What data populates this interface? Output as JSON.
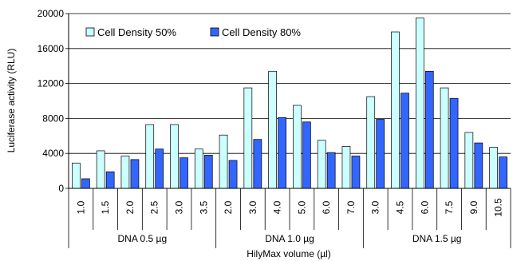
{
  "chart_data": {
    "type": "bar",
    "title": "",
    "ylabel": "Luciferase activity (RLU)",
    "xlabel": "HilyMax volume (µl)",
    "ylim": [
      0,
      20000
    ],
    "yticks": [
      0,
      4000,
      8000,
      12000,
      16000,
      20000
    ],
    "grid": "horizontal",
    "legend_position": "top-left",
    "groups": [
      {
        "label": "DNA 0.5 µg",
        "count": 6
      },
      {
        "label": "DNA 1.0 µg",
        "count": 6
      },
      {
        "label": "DNA 1.5 µg",
        "count": 6
      }
    ],
    "categories": [
      "1.0",
      "1.5",
      "2.0",
      "2.5",
      "3.0",
      "3.5",
      "2.0",
      "3.0",
      "4.0",
      "5.0",
      "6.0",
      "7.0",
      "3.0",
      "4.5",
      "6.0",
      "7.5",
      "9.0",
      "10.5"
    ],
    "series": [
      {
        "name": "Cell Density 50%",
        "color": "#ccffff",
        "values": [
          2900,
          4300,
          3700,
          7300,
          7300,
          4500,
          6100,
          11500,
          13400,
          9500,
          5500,
          4800,
          10500,
          17900,
          19500,
          11500,
          6400,
          4700
        ]
      },
      {
        "name": "Cell Density 80%",
        "color": "#3366ff",
        "values": [
          1100,
          1900,
          3300,
          4500,
          3500,
          3800,
          3200,
          5600,
          8100,
          7600,
          4100,
          3700,
          7900,
          10900,
          13400,
          10300,
          5200,
          3600
        ]
      }
    ]
  }
}
